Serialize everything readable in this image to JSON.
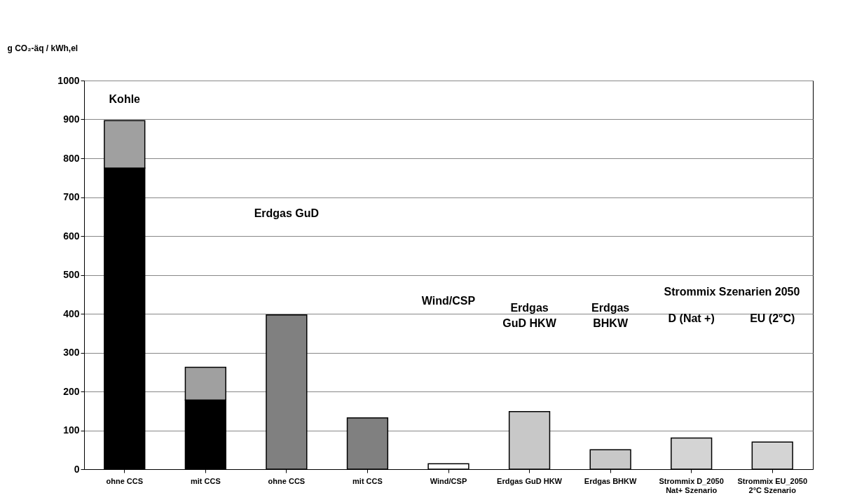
{
  "chart_data": {
    "type": "bar",
    "stacked": true,
    "ylabel": "g CO₂-äq / kWh,el",
    "categories": [
      "ohne CCS",
      "mit CCS",
      "ohne CCS",
      "mit CCS",
      "Wind/CSP",
      "Erdgas GuD HKW",
      "Erdgas BHKW",
      "Strommix D_2050 Nat+ Szenario",
      "Strommix EU_2050 2°C Szenario"
    ],
    "series": [
      {
        "colors": [
          "#000000",
          "#000000",
          "#808080",
          "#808080",
          "#ffffff",
          "#c8c8c8",
          "#c8c8c8",
          "#d4d4d4",
          "#d4d4d4"
        ],
        "values": [
          775,
          178,
          397,
          132,
          14,
          148,
          50,
          80,
          70
        ]
      },
      {
        "color": "#a0a0a0",
        "values": [
          122,
          84,
          null,
          null,
          null,
          null,
          null,
          null,
          null
        ]
      }
    ],
    "ylim": [
      0,
      1000
    ],
    "yticks": [
      0,
      100,
      200,
      300,
      400,
      500,
      600,
      700,
      800,
      900,
      1000
    ],
    "grid": "y",
    "annotations": [
      "Kohle",
      "Erdgas GuD",
      "Wind/CSP",
      "Erdgas\nGuD HKW",
      "Erdgas\nBHKW",
      "Strommix Szenarien 2050",
      "D (Nat +)",
      "EU (2°C)"
    ]
  }
}
